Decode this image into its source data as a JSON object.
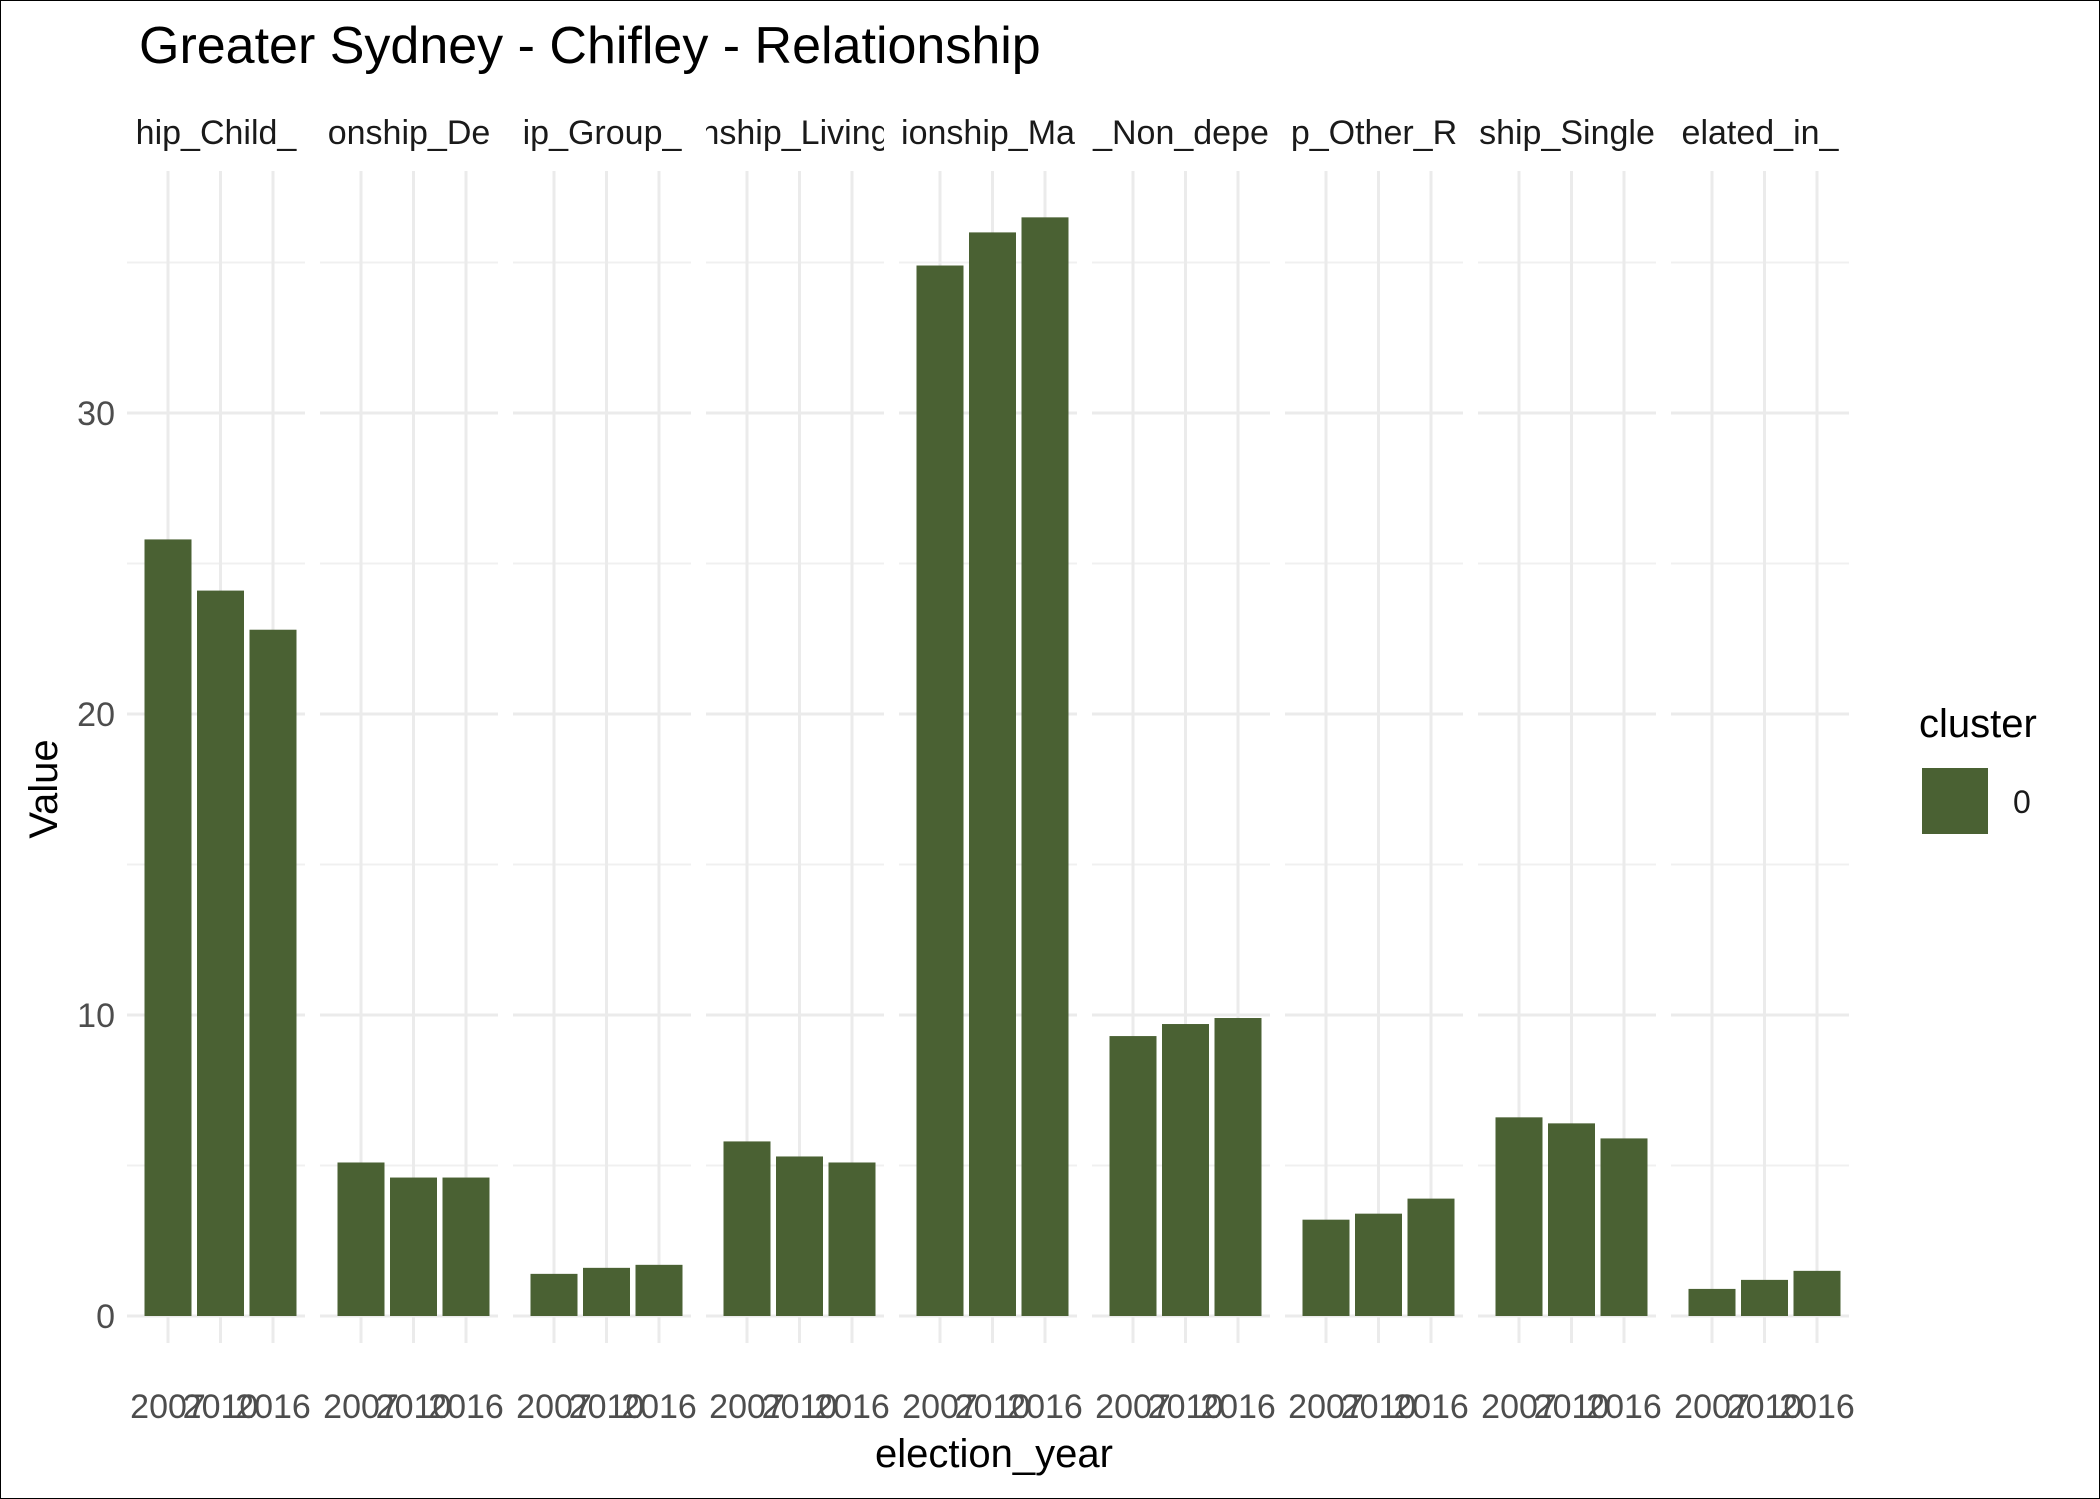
{
  "chart_data": {
    "type": "bar",
    "title": "Greater Sydney - Chifley - Relationship",
    "xlabel": "election_year",
    "ylabel": "Value",
    "ylim": [
      0,
      37.5
    ],
    "y_ticks": [
      0,
      10,
      20,
      30
    ],
    "x": [
      "2007",
      "2010",
      "2016"
    ],
    "x_tick_labels": [
      "2007",
      "2010",
      "2016"
    ],
    "color": "#4a6133",
    "grid": true,
    "legend": {
      "title": "cluster",
      "placement": "right",
      "entries": [
        {
          "label": "0",
          "color": "#4a6133"
        }
      ]
    },
    "facets": [
      {
        "label": "hip_Child_",
        "values": [
          25.8,
          24.1,
          22.8
        ]
      },
      {
        "label": "onship_De",
        "values": [
          5.1,
          4.6,
          4.6
        ]
      },
      {
        "label": "ip_Group_",
        "values": [
          1.4,
          1.6,
          1.7
        ]
      },
      {
        "label": "nship_Living",
        "values": [
          5.8,
          5.3,
          5.1
        ]
      },
      {
        "label": "ionship_Ma",
        "values": [
          34.9,
          36.0,
          36.5
        ]
      },
      {
        "label": "_Non_depe",
        "values": [
          9.3,
          9.7,
          9.9
        ]
      },
      {
        "label": "p_Other_R",
        "values": [
          3.2,
          3.4,
          3.9
        ]
      },
      {
        "label": "ship_Single",
        "values": [
          6.6,
          6.4,
          5.9
        ]
      },
      {
        "label": "elated_in_",
        "values": [
          0.9,
          1.2,
          1.5
        ]
      }
    ]
  }
}
